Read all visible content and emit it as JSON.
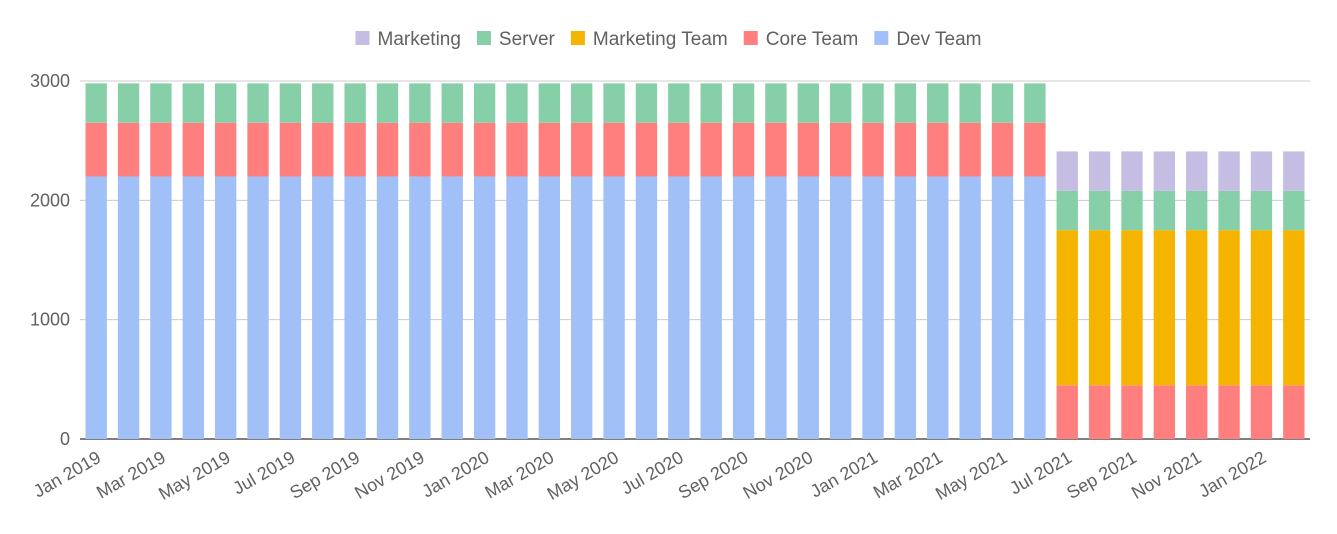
{
  "chart_data": {
    "type": "bar",
    "stacked": true,
    "categories": [
      "Jan 2019",
      "Feb 2019",
      "Mar 2019",
      "Apr 2019",
      "May 2019",
      "Jun 2019",
      "Jul 2019",
      "Aug 2019",
      "Sep 2019",
      "Oct 2019",
      "Nov 2019",
      "Dec 2019",
      "Jan 2020",
      "Feb 2020",
      "Mar 2020",
      "Apr 2020",
      "May 2020",
      "Jun 2020",
      "Jul 2020",
      "Aug 2020",
      "Sep 2020",
      "Oct 2020",
      "Nov 2020",
      "Dec 2020",
      "Jan 2021",
      "Feb 2021",
      "Mar 2021",
      "Apr 2021",
      "May 2021",
      "Jun 2021",
      "Jul 2021",
      "Aug 2021",
      "Sep 2021",
      "Oct 2021",
      "Nov 2021",
      "Dec 2021",
      "Jan 2022",
      "Feb 2022"
    ],
    "x_tick_labels": [
      "Jan 2019",
      "Mar 2019",
      "May 2019",
      "Jul 2019",
      "Sep 2019",
      "Nov 2019",
      "Jan 2020",
      "Mar 2020",
      "May 2020",
      "Jul 2020",
      "Sep 2020",
      "Nov 2020",
      "Jan 2021",
      "Mar 2021",
      "May 2021",
      "Jul 2021",
      "Sep 2021",
      "Nov 2021",
      "Jan 2022"
    ],
    "series": [
      {
        "name": "Dev Team",
        "color": "#a0c0f7",
        "values": [
          2200,
          2200,
          2200,
          2200,
          2200,
          2200,
          2200,
          2200,
          2200,
          2200,
          2200,
          2200,
          2200,
          2200,
          2200,
          2200,
          2200,
          2200,
          2200,
          2200,
          2200,
          2200,
          2200,
          2200,
          2200,
          2200,
          2200,
          2200,
          2200,
          2200,
          0,
          0,
          0,
          0,
          0,
          0,
          0,
          0
        ]
      },
      {
        "name": "Core Team",
        "color": "#ff7f7f",
        "values": [
          450,
          450,
          450,
          450,
          450,
          450,
          450,
          450,
          450,
          450,
          450,
          450,
          450,
          450,
          450,
          450,
          450,
          450,
          450,
          450,
          450,
          450,
          450,
          450,
          450,
          450,
          450,
          450,
          450,
          450,
          450,
          450,
          450,
          450,
          450,
          450,
          450,
          450
        ]
      },
      {
        "name": "Marketing Team",
        "color": "#f4b400",
        "values": [
          0,
          0,
          0,
          0,
          0,
          0,
          0,
          0,
          0,
          0,
          0,
          0,
          0,
          0,
          0,
          0,
          0,
          0,
          0,
          0,
          0,
          0,
          0,
          0,
          0,
          0,
          0,
          0,
          0,
          0,
          1300,
          1300,
          1300,
          1300,
          1300,
          1300,
          1300,
          1300
        ]
      },
      {
        "name": "Server",
        "color": "#87cfa9",
        "values": [
          330,
          330,
          330,
          330,
          330,
          330,
          330,
          330,
          330,
          330,
          330,
          330,
          330,
          330,
          330,
          330,
          330,
          330,
          330,
          330,
          330,
          330,
          330,
          330,
          330,
          330,
          330,
          330,
          330,
          330,
          330,
          330,
          330,
          330,
          330,
          330,
          330,
          330
        ]
      },
      {
        "name": "Marketing",
        "color": "#c6bde2",
        "values": [
          0,
          0,
          0,
          0,
          0,
          0,
          0,
          0,
          0,
          0,
          0,
          0,
          0,
          0,
          0,
          0,
          0,
          0,
          0,
          0,
          0,
          0,
          0,
          0,
          0,
          0,
          0,
          0,
          0,
          0,
          330,
          330,
          330,
          330,
          330,
          330,
          330,
          330
        ]
      }
    ],
    "legend_order": [
      "Marketing",
      "Server",
      "Marketing Team",
      "Core Team",
      "Dev Team"
    ],
    "legend_position": "top",
    "y_ticks": [
      0,
      1000,
      2000,
      3000
    ],
    "ylim": [
      0,
      3000
    ],
    "grid": true,
    "title": "",
    "xlabel": "",
    "ylabel": ""
  }
}
